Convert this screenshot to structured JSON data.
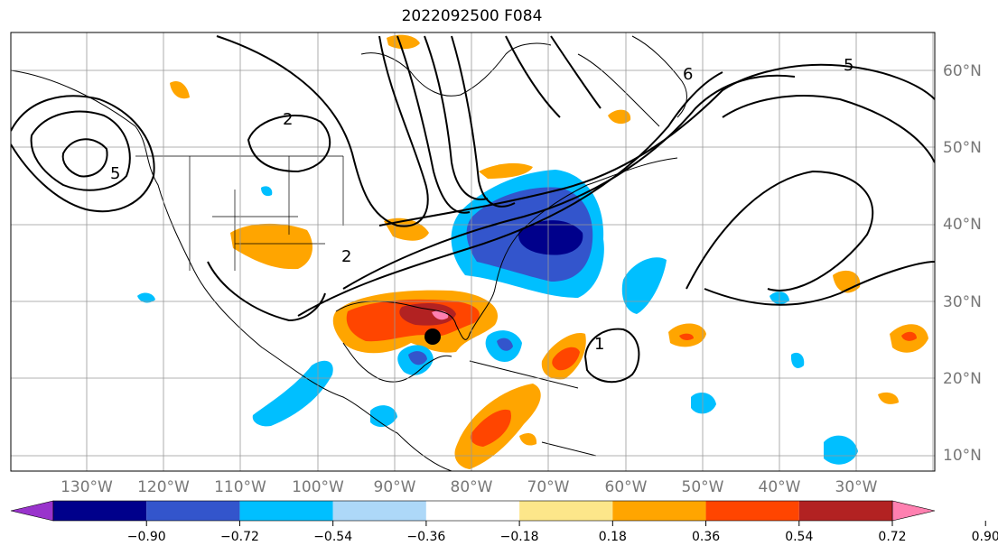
{
  "title": "2022092500 F084",
  "map": {
    "lon_range": [
      -140,
      -12
    ],
    "lat_range": [
      8,
      65
    ],
    "lon_labels": [
      "130°W",
      "120°W",
      "110°W",
      "100°W",
      "90°W",
      "80°W",
      "70°W",
      "60°W",
      "50°W",
      "40°W",
      "30°W"
    ],
    "lat_labels": [
      "60°N",
      "50°N",
      "40°N",
      "30°N",
      "20°N",
      "10°N"
    ],
    "contour_labels": [
      "2",
      "5",
      "5",
      "6",
      "1",
      "2"
    ],
    "storm_marker": {
      "lon": -85,
      "lat": 25.5
    }
  },
  "colorbar": {
    "ticks": [
      "−0.90",
      "−0.72",
      "−0.54",
      "−0.36",
      "−0.18",
      "0.18",
      "0.36",
      "0.54",
      "0.72",
      "0.90"
    ],
    "colors": [
      "#9933cc",
      "#00008b",
      "#3355cc",
      "#00bfff",
      "#add8f8",
      "#ffffff",
      "#fde68a",
      "#ffa500",
      "#ff4500",
      "#b22222",
      "#ff80b0"
    ]
  }
}
